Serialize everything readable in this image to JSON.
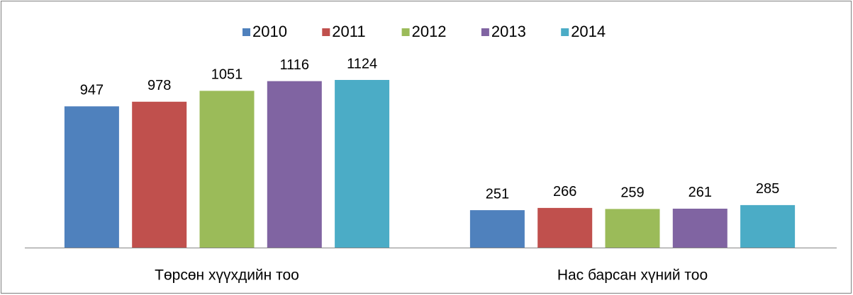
{
  "chart_data": {
    "type": "bar",
    "categories": [
      "Төрсөн хүүхдийн тоо",
      "Нас барсан хүний тоо"
    ],
    "series": [
      {
        "name": "2010",
        "color": "#4f81bd",
        "values": [
          947,
          251
        ]
      },
      {
        "name": "2011",
        "color": "#c0504d",
        "values": [
          978,
          266
        ]
      },
      {
        "name": "2012",
        "color": "#9bbb59",
        "values": [
          1051,
          259
        ]
      },
      {
        "name": "2013",
        "color": "#8064a2",
        "values": [
          1116,
          261
        ]
      },
      {
        "name": "2014",
        "color": "#4bacc6",
        "values": [
          1124,
          285
        ]
      }
    ],
    "legend": "top"
  }
}
